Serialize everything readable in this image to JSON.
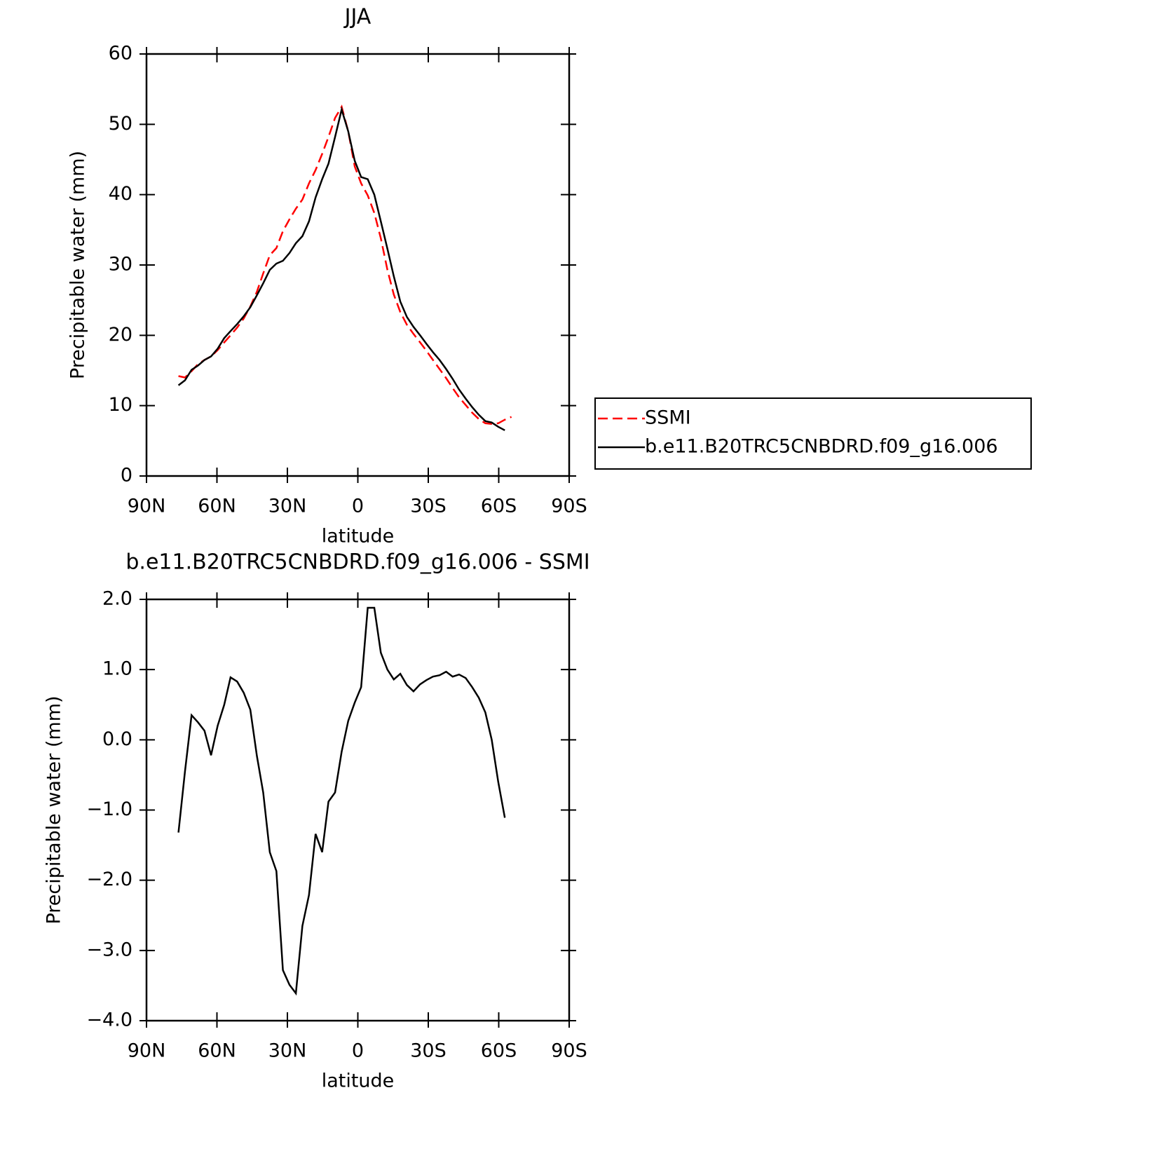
{
  "chart_data": [
    {
      "type": "line",
      "title": "JJA",
      "xlabel": "latitude",
      "ylabel": "Precipitable water (mm)",
      "x": [
        76.4,
        73.6,
        70.8,
        68.1,
        65.3,
        62.5,
        59.7,
        56.9,
        54.2,
        51.4,
        48.6,
        45.8,
        43.0,
        40.3,
        37.5,
        34.7,
        31.9,
        29.1,
        26.4,
        23.6,
        20.8,
        18.0,
        15.2,
        12.5,
        9.7,
        6.9,
        4.1,
        1.3,
        -1.4,
        -4.2,
        -7.0,
        -9.8,
        -12.6,
        -15.3,
        -18.1,
        -20.9,
        -23.7,
        -26.5,
        -29.2,
        -32.0,
        -34.8,
        -37.6,
        -40.4,
        -43.1,
        -45.9,
        -48.7,
        -51.5,
        -54.3,
        -57.0,
        -59.8,
        -62.6,
        -65.4
      ],
      "series": [
        {
          "name": "SSMI",
          "color": "#ff0000",
          "style": "dashed",
          "values": [
            14.2,
            14.0,
            14.9,
            15.9,
            16.5,
            17.0,
            17.9,
            19.0,
            20.0,
            21.1,
            22.4,
            24.1,
            26.2,
            28.8,
            31.4,
            32.4,
            34.8,
            36.5,
            38.0,
            39.3,
            41.6,
            43.5,
            45.8,
            48.2,
            50.9,
            52.5,
            49.0,
            44.0,
            41.6,
            39.9,
            37.4,
            33.8,
            29.3,
            25.8,
            23.3,
            21.5,
            20.2,
            19.0,
            17.8,
            16.5,
            15.2,
            13.9,
            12.5,
            11.2,
            10.1,
            9.0,
            8.1,
            7.5,
            7.4,
            7.5,
            8.0,
            8.4
          ]
        },
        {
          "name": "b.e11.B20TRC5CNBDRD.f09_g16.006",
          "color": "#000000",
          "style": "solid",
          "values": [
            12.9,
            13.6,
            15.1,
            15.7,
            16.5,
            17.0,
            18.1,
            19.6,
            20.6,
            21.6,
            22.7,
            24.0,
            25.7,
            27.4,
            29.3,
            30.2,
            30.6,
            31.7,
            33.1,
            34.1,
            36.2,
            39.6,
            42.2,
            44.4,
            48.2,
            52.1,
            49.0,
            44.8,
            42.5,
            42.2,
            40.0,
            36.2,
            32.3,
            28.4,
            24.8,
            22.6,
            21.2,
            20.0,
            18.8,
            17.6,
            16.5,
            15.2,
            13.8,
            12.3,
            11.0,
            9.8,
            8.7,
            7.8,
            7.6,
            7.0,
            6.5,
            null
          ]
        }
      ],
      "xlim": [
        90,
        -90
      ],
      "xticks": [
        {
          "value": 90,
          "label": "90N"
        },
        {
          "value": 60,
          "label": "60N"
        },
        {
          "value": 30,
          "label": "30N"
        },
        0,
        {
          "value": -30,
          "label": "30S"
        },
        {
          "value": -60,
          "label": "60S"
        },
        {
          "value": -90,
          "label": "90S"
        }
      ],
      "ylim": [
        0,
        60
      ],
      "yticks": [
        0,
        10,
        20,
        30,
        40,
        50,
        60
      ],
      "legend": "right"
    },
    {
      "type": "line",
      "title": "b.e11.B20TRC5CNBDRD.f09_g16.006 - SSMI",
      "xlabel": "latitude",
      "ylabel": "Precipitable water (mm)",
      "x": [
        76.4,
        73.6,
        70.8,
        68.1,
        65.3,
        62.5,
        59.7,
        56.9,
        54.2,
        51.4,
        48.6,
        45.8,
        43.0,
        40.3,
        37.5,
        34.7,
        31.9,
        29.1,
        26.4,
        23.6,
        20.8,
        18.0,
        15.2,
        12.5,
        9.7,
        6.9,
        4.1,
        1.3,
        -1.4,
        -4.2,
        -7.0,
        -9.8,
        -12.6,
        -15.3,
        -18.1,
        -20.9,
        -23.7,
        -26.5,
        -29.2,
        -32.0,
        -34.8,
        -37.6,
        -40.4,
        -43.1,
        -45.9,
        -48.7,
        -51.5,
        -54.3,
        -57.0,
        -59.8,
        -62.6
      ],
      "series": [
        {
          "color": "#000000",
          "style": "solid",
          "values": [
            -1.32,
            -0.45,
            0.35,
            0.25,
            0.13,
            -0.22,
            0.2,
            0.5,
            0.89,
            0.83,
            0.67,
            0.43,
            -0.23,
            -0.75,
            -1.6,
            -1.87,
            -3.28,
            -3.49,
            -3.61,
            -2.65,
            -2.21,
            -1.34,
            -1.6,
            -0.88,
            -0.75,
            -0.17,
            0.27,
            0.53,
            0.75,
            1.88,
            1.88,
            1.24,
            1.0,
            0.86,
            0.94,
            0.78,
            0.69,
            0.79,
            0.85,
            0.9,
            0.92,
            0.97,
            0.9,
            0.93,
            0.88,
            0.75,
            0.6,
            0.39,
            0.0,
            -0.6,
            -1.11
          ]
        }
      ],
      "xlim": [
        90,
        -90
      ],
      "xticks": [
        {
          "value": 90,
          "label": "90N"
        },
        {
          "value": 60,
          "label": "60N"
        },
        {
          "value": 30,
          "label": "30N"
        },
        0,
        {
          "value": -30,
          "label": "30S"
        },
        {
          "value": -60,
          "label": "60S"
        },
        {
          "value": -90,
          "label": "90S"
        }
      ],
      "ylim": [
        -4,
        2
      ],
      "yticks": [
        {
          "value": -4,
          "label": "−4.0"
        },
        {
          "value": -3,
          "label": "−3.0"
        },
        {
          "value": -2,
          "label": "−2.0"
        },
        {
          "value": -1,
          "label": "−1.0"
        },
        {
          "value": 0,
          "label": "0.0"
        },
        {
          "value": 1,
          "label": "1.0"
        },
        {
          "value": 2,
          "label": "2.0"
        }
      ]
    }
  ]
}
